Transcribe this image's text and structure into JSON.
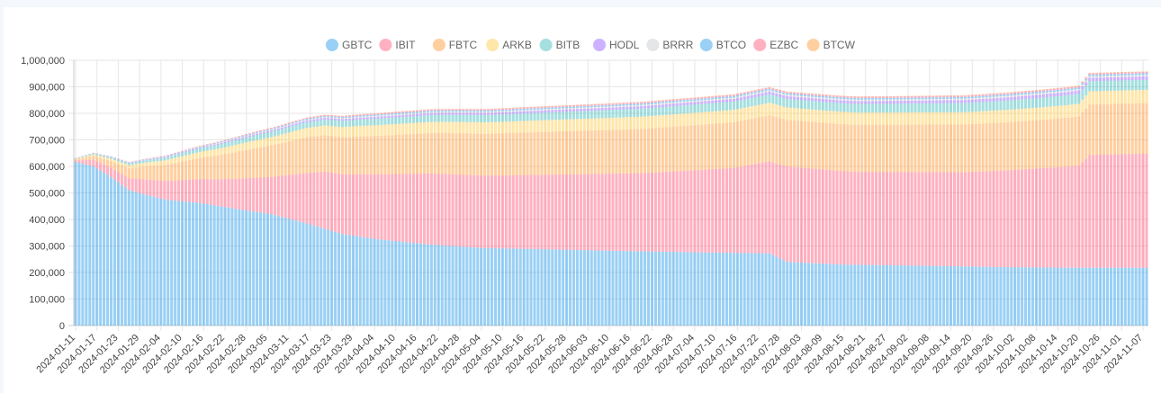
{
  "chart_data": {
    "type": "bar",
    "stacked": true,
    "title": "",
    "xlabel": "",
    "ylabel": "",
    "ylim": [
      0,
      1000000
    ],
    "yticks": [
      0,
      100000,
      200000,
      300000,
      400000,
      500000,
      600000,
      700000,
      800000,
      900000,
      1000000
    ],
    "ytick_labels": [
      "0",
      "100,000",
      "200,000",
      "300,000",
      "400,000",
      "500,000",
      "600,000",
      "700,000",
      "800,000",
      "900,000",
      "1,000,000"
    ],
    "x_start": "2024-01-11",
    "x_end": "2024-11-07",
    "x_tick_step_days": 6,
    "x_tick_labels": [
      "2024-01-11",
      "2024-01-17",
      "2024-01-23",
      "2024-01-29",
      "2024-02-04",
      "2024-02-10",
      "2024-02-16",
      "2024-02-22",
      "2024-02-28",
      "2024-03-05",
      "2024-03-11",
      "2024-03-17",
      "2024-03-23",
      "2024-03-29",
      "2024-04-04",
      "2024-04-10",
      "2024-04-16",
      "2024-04-22",
      "2024-04-28",
      "2024-05-04",
      "2024-05-10",
      "2024-05-16",
      "2024-05-22",
      "2024-05-28",
      "2024-06-03",
      "2024-06-10",
      "2024-06-16",
      "2024-06-22",
      "2024-06-28",
      "2024-07-04",
      "2024-07-10",
      "2024-07-16",
      "2024-07-22",
      "2024-07-28",
      "2024-08-03",
      "2024-08-09",
      "2024-08-15",
      "2024-08-21",
      "2024-08-27",
      "2024-09-02",
      "2024-09-08",
      "2024-09-14",
      "2024-09-20",
      "2024-09-26",
      "2024-10-02",
      "2024-10-08",
      "2024-10-14",
      "2024-10-20",
      "2024-10-26",
      "2024-11-01",
      "2024-11-07"
    ],
    "grid": true,
    "legend_position": "top-center",
    "series": [
      {
        "name": "GBTC",
        "color": "#36a2eb",
        "anchors": [
          [
            0,
            617000
          ],
          [
            5,
            600000
          ],
          [
            10,
            560000
          ],
          [
            15,
            510000
          ],
          [
            25,
            475000
          ],
          [
            35,
            462000
          ],
          [
            45,
            440000
          ],
          [
            55,
            420000
          ],
          [
            65,
            385000
          ],
          [
            75,
            345000
          ],
          [
            85,
            325000
          ],
          [
            100,
            305000
          ],
          [
            115,
            292000
          ],
          [
            130,
            288000
          ],
          [
            150,
            282000
          ],
          [
            175,
            276000
          ],
          [
            195,
            272000
          ],
          [
            200,
            240000
          ],
          [
            215,
            230000
          ],
          [
            240,
            225000
          ],
          [
            262,
            220000
          ],
          [
            280,
            218000
          ],
          [
            300,
            218000
          ]
        ]
      },
      {
        "name": "IBIT",
        "color": "#ff6384",
        "anchors": [
          [
            0,
            5000
          ],
          [
            5,
            25000
          ],
          [
            15,
            45000
          ],
          [
            25,
            70000
          ],
          [
            40,
            100000
          ],
          [
            55,
            140000
          ],
          [
            70,
            215000
          ],
          [
            85,
            245000
          ],
          [
            100,
            268000
          ],
          [
            120,
            275000
          ],
          [
            140,
            285000
          ],
          [
            160,
            295000
          ],
          [
            185,
            320000
          ],
          [
            200,
            360000
          ],
          [
            220,
            350000
          ],
          [
            250,
            355000
          ],
          [
            262,
            365000
          ],
          [
            278,
            380000
          ],
          [
            282,
            385000
          ],
          [
            285,
            425000
          ],
          [
            300,
            430000
          ]
        ]
      },
      {
        "name": "FBTC",
        "color": "#ff9f40",
        "anchors": [
          [
            0,
            4000
          ],
          [
            10,
            25000
          ],
          [
            20,
            50000
          ],
          [
            35,
            80000
          ],
          [
            50,
            110000
          ],
          [
            65,
            135000
          ],
          [
            85,
            145000
          ],
          [
            105,
            155000
          ],
          [
            125,
            160000
          ],
          [
            150,
            165000
          ],
          [
            175,
            170000
          ],
          [
            200,
            175000
          ],
          [
            225,
            178000
          ],
          [
            250,
            180000
          ],
          [
            270,
            182000
          ],
          [
            282,
            185000
          ],
          [
            285,
            190000
          ],
          [
            300,
            190000
          ]
        ]
      },
      {
        "name": "ARKB",
        "color": "#ffcd56",
        "anchors": [
          [
            0,
            2000
          ],
          [
            15,
            12000
          ],
          [
            30,
            20000
          ],
          [
            50,
            30000
          ],
          [
            80,
            40000
          ],
          [
            110,
            43000
          ],
          [
            140,
            45000
          ],
          [
            170,
            47000
          ],
          [
            200,
            47000
          ],
          [
            230,
            46000
          ],
          [
            260,
            47000
          ],
          [
            282,
            48000
          ],
          [
            285,
            50000
          ],
          [
            300,
            50000
          ]
        ]
      },
      {
        "name": "BITB",
        "color": "#4bc0c0",
        "anchors": [
          [
            0,
            2000
          ],
          [
            15,
            7000
          ],
          [
            30,
            12000
          ],
          [
            50,
            19000
          ],
          [
            80,
            24000
          ],
          [
            110,
            27000
          ],
          [
            140,
            29000
          ],
          [
            170,
            31000
          ],
          [
            200,
            32000
          ],
          [
            230,
            33000
          ],
          [
            260,
            35000
          ],
          [
            285,
            38000
          ],
          [
            300,
            38000
          ]
        ]
      },
      {
        "name": "HODL",
        "color": "#9966ff",
        "anchors": [
          [
            0,
            500
          ],
          [
            30,
            3000
          ],
          [
            60,
            6000
          ],
          [
            90,
            7500
          ],
          [
            130,
            8500
          ],
          [
            170,
            9500
          ],
          [
            200,
            10500
          ],
          [
            240,
            11000
          ],
          [
            270,
            12000
          ],
          [
            300,
            13000
          ]
        ]
      },
      {
        "name": "BRRR",
        "color": "#c9cbcf",
        "anchors": [
          [
            0,
            300
          ],
          [
            30,
            1500
          ],
          [
            60,
            3000
          ],
          [
            90,
            4000
          ],
          [
            130,
            4500
          ],
          [
            170,
            5000
          ],
          [
            210,
            5200
          ],
          [
            250,
            5500
          ],
          [
            300,
            5800
          ]
        ]
      },
      {
        "name": "BTCO",
        "color": "#36a2eb",
        "anchors": [
          [
            0,
            300
          ],
          [
            30,
            1500
          ],
          [
            60,
            3500
          ],
          [
            90,
            4500
          ],
          [
            130,
            5000
          ],
          [
            170,
            5500
          ],
          [
            210,
            5600
          ],
          [
            250,
            5800
          ],
          [
            300,
            6000
          ]
        ]
      },
      {
        "name": "EZBC",
        "color": "#ff6384",
        "anchors": [
          [
            0,
            300
          ],
          [
            30,
            2000
          ],
          [
            60,
            3500
          ],
          [
            90,
            4500
          ],
          [
            130,
            5000
          ],
          [
            170,
            5200
          ],
          [
            210,
            5400
          ],
          [
            250,
            5600
          ],
          [
            300,
            5800
          ]
        ]
      },
      {
        "name": "BTCW",
        "color": "#ff9f40",
        "anchors": [
          [
            0,
            100
          ],
          [
            30,
            600
          ],
          [
            60,
            1000
          ],
          [
            90,
            1200
          ],
          [
            130,
            1300
          ],
          [
            170,
            1400
          ],
          [
            210,
            1450
          ],
          [
            250,
            1500
          ],
          [
            300,
            1500
          ]
        ]
      }
    ]
  }
}
